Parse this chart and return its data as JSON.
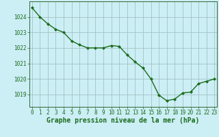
{
  "x": [
    0,
    1,
    2,
    3,
    4,
    5,
    6,
    7,
    8,
    9,
    10,
    11,
    12,
    13,
    14,
    15,
    16,
    17,
    18,
    19,
    20,
    21,
    22,
    23
  ],
  "y": [
    1024.6,
    1024.0,
    1023.55,
    1023.2,
    1023.0,
    1022.45,
    1022.2,
    1022.0,
    1022.0,
    1022.0,
    1022.15,
    1022.1,
    1021.55,
    1021.1,
    1020.7,
    1020.0,
    1018.95,
    1018.6,
    1018.7,
    1019.1,
    1019.15,
    1019.7,
    1019.85,
    1020.0
  ],
  "line_color": "#1a6b1a",
  "marker": "D",
  "markersize": 2.2,
  "linewidth": 1.0,
  "bg_color": "#cceef5",
  "grid_color": "#99bbbb",
  "xlabel": "Graphe pression niveau de la mer (hPa)",
  "xlabel_fontsize": 7.0,
  "xlabel_color": "#1a6b1a",
  "ylabel_ticks": [
    1019,
    1020,
    1021,
    1022,
    1023,
    1024
  ],
  "ylim": [
    1018.2,
    1025.0
  ],
  "xlim": [
    -0.3,
    23.3
  ],
  "xtick_labels": [
    "0",
    "1",
    "2",
    "3",
    "4",
    "5",
    "6",
    "7",
    "8",
    "9",
    "10",
    "11",
    "12",
    "13",
    "14",
    "15",
    "16",
    "17",
    "18",
    "19",
    "20",
    "21",
    "22",
    "23"
  ],
  "tick_color": "#1a6b1a",
  "tick_fontsize": 5.5,
  "spine_color": "#336633"
}
